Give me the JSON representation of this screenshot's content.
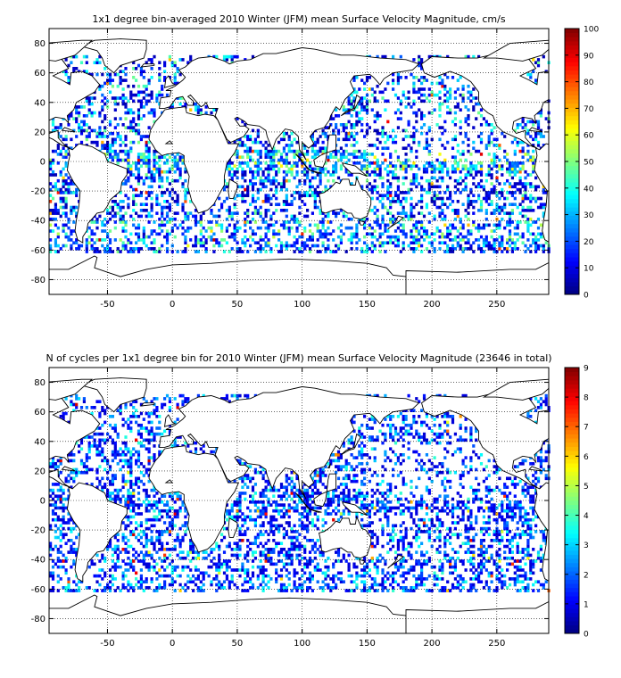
{
  "chart_data": [
    {
      "type": "heatmap",
      "title": "1x1 degree bin-averaged 2010 Winter (JFM) mean Surface Velocity Magnitude, cm/s",
      "xlabel": "",
      "ylabel": "",
      "xlim": [
        -95,
        290
      ],
      "ylim": [
        -90,
        90
      ],
      "xticks": [
        -50,
        0,
        50,
        100,
        150,
        200,
        250
      ],
      "yticks": [
        -80,
        -60,
        -40,
        -20,
        0,
        20,
        40,
        60,
        80
      ],
      "grid": true,
      "colorbar": {
        "min": 0,
        "max": 100,
        "ticks": [
          0,
          10,
          20,
          30,
          40,
          50,
          60,
          70,
          80,
          90,
          100
        ],
        "colormap": "jet"
      },
      "annotations": [
        "Continents drawn as black outlines; colored pixels are 1x1 degree bins with data; white = no data"
      ]
    },
    {
      "type": "heatmap",
      "title": "N of cycles per 1x1 degree bin for 2010 Winter (JFM) mean Surface Velocity Magnitude (23646 in total)",
      "xlabel": "",
      "ylabel": "",
      "xlim": [
        -95,
        290
      ],
      "ylim": [
        -90,
        90
      ],
      "xticks": [
        -50,
        0,
        50,
        100,
        150,
        200,
        250
      ],
      "yticks": [
        -80,
        -60,
        -40,
        -20,
        0,
        20,
        40,
        60,
        80
      ],
      "grid": true,
      "colorbar": {
        "min": 0,
        "max": 9,
        "ticks": [
          0,
          1,
          2,
          3,
          4,
          5,
          6,
          7,
          8,
          9
        ],
        "colormap": "jet"
      },
      "total_cycles": 23646
    }
  ]
}
